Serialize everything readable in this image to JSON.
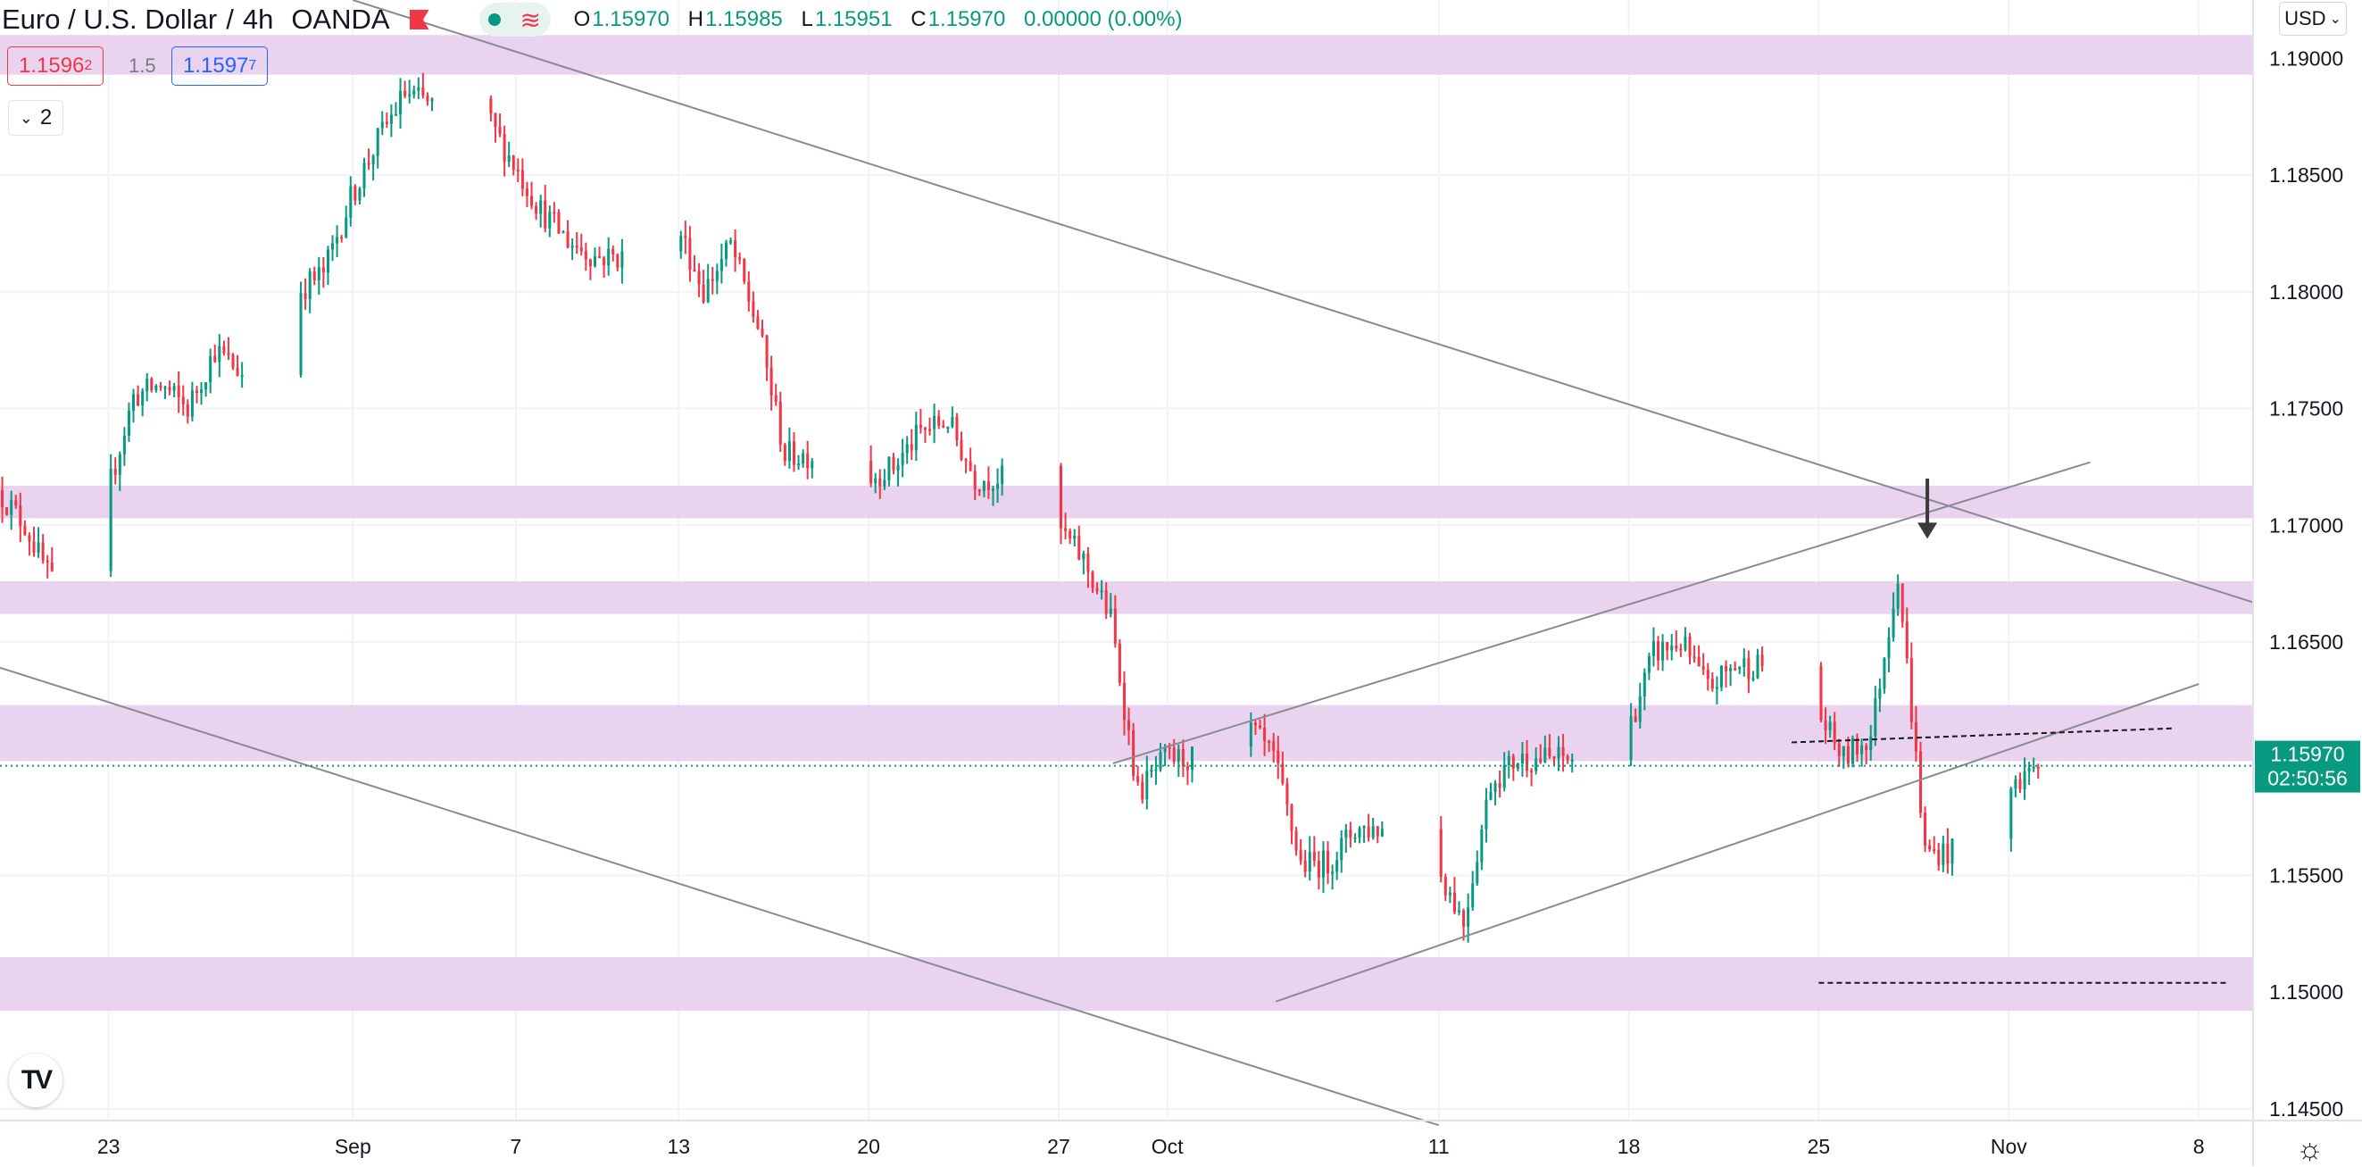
{
  "header": {
    "symbol": "Euro / U.S. Dollar",
    "interval": "4h",
    "broker": "OANDA",
    "ohlc": {
      "o_label": "O",
      "o": "1.15970",
      "h_label": "H",
      "h": "1.15985",
      "l_label": "L",
      "l": "1.15951",
      "c_label": "C",
      "c": "1.15970",
      "change": "0.00000 (0.00%)"
    }
  },
  "quote": {
    "sell_main": "1.1596",
    "sell_sup": "2",
    "spread": "1.5",
    "buy_main": "1.1597",
    "buy_sup": "7"
  },
  "indicator_count": "2",
  "currency": "USD",
  "colors": {
    "up": "#089981",
    "down": "#f23645",
    "zone": "#e5cbec",
    "line": "#8a8a96"
  },
  "chart_data": {
    "type": "candlestick",
    "y_ticks": [
      "1.19000",
      "1.18500",
      "1.18000",
      "1.17500",
      "1.17000",
      "1.16500",
      "1.15500",
      "1.15000",
      "1.14500"
    ],
    "x_ticks": [
      {
        "label": "23",
        "x": "2021-08-23"
      },
      {
        "label": "Sep",
        "x": "2021-09-01"
      },
      {
        "label": "7",
        "x": "2021-09-07"
      },
      {
        "label": "13",
        "x": "2021-09-13"
      },
      {
        "label": "20",
        "x": "2021-09-20"
      },
      {
        "label": "27",
        "x": "2021-09-27"
      },
      {
        "label": "Oct",
        "x": "2021-10-01"
      },
      {
        "label": "11",
        "x": "2021-10-11"
      },
      {
        "label": "18",
        "x": "2021-10-18"
      },
      {
        "label": "25",
        "x": "2021-10-25"
      },
      {
        "label": "Nov",
        "x": "2021-11-01"
      },
      {
        "label": "8",
        "x": "2021-11-08"
      }
    ],
    "x_range": [
      "2021-08-19",
      "2021-11-10"
    ],
    "y_range": [
      1.1445,
      1.1925
    ],
    "last_price": "1.15970",
    "countdown": "02:50:56",
    "price_path": [
      [
        "2021-08-19",
        1.1715
      ],
      [
        "2021-08-20",
        1.17
      ],
      [
        "2021-08-21",
        1.1675
      ],
      [
        "2021-08-22",
        1.1683
      ],
      [
        "2021-08-23",
        1.1712
      ],
      [
        "2021-08-24",
        1.1755
      ],
      [
        "2021-08-25",
        1.176
      ],
      [
        "2021-08-26",
        1.175
      ],
      [
        "2021-08-27",
        1.1775
      ],
      [
        "2021-08-28",
        1.1765
      ],
      [
        "2021-08-29",
        1.177
      ],
      [
        "2021-08-30",
        1.18
      ],
      [
        "2021-08-31",
        1.1808
      ],
      [
        "2021-09-01",
        1.184
      ],
      [
        "2021-09-02",
        1.1865
      ],
      [
        "2021-09-03",
        1.1885
      ],
      [
        "2021-09-04",
        1.188
      ],
      [
        "2021-09-05",
        1.188
      ],
      [
        "2021-09-06",
        1.1875
      ],
      [
        "2021-09-07",
        1.1855
      ],
      [
        "2021-09-08",
        1.1835
      ],
      [
        "2021-09-09",
        1.1822
      ],
      [
        "2021-09-10",
        1.1815
      ],
      [
        "2021-09-11",
        1.1815
      ],
      [
        "2021-09-12",
        1.1815
      ],
      [
        "2021-09-13",
        1.183
      ],
      [
        "2021-09-14",
        1.18
      ],
      [
        "2021-09-15",
        1.182
      ],
      [
        "2021-09-16",
        1.1785
      ],
      [
        "2021-09-17",
        1.173
      ],
      [
        "2021-09-18",
        1.173
      ],
      [
        "2021-09-19",
        1.173
      ],
      [
        "2021-09-20",
        1.172
      ],
      [
        "2021-09-21",
        1.1725
      ],
      [
        "2021-09-22",
        1.174
      ],
      [
        "2021-09-23",
        1.1745
      ],
      [
        "2021-09-24",
        1.172
      ],
      [
        "2021-09-25",
        1.172
      ],
      [
        "2021-09-26",
        1.172
      ],
      [
        "2021-09-27",
        1.17
      ],
      [
        "2021-09-28",
        1.1685
      ],
      [
        "2021-09-29",
        1.166
      ],
      [
        "2021-09-30",
        1.1585
      ],
      [
        "2021-10-01",
        1.16
      ],
      [
        "2021-10-02",
        1.16
      ],
      [
        "2021-10-03",
        1.16
      ],
      [
        "2021-10-04",
        1.1615
      ],
      [
        "2021-10-05",
        1.16
      ],
      [
        "2021-10-06",
        1.1555
      ],
      [
        "2021-10-07",
        1.1555
      ],
      [
        "2021-10-08",
        1.157
      ],
      [
        "2021-10-09",
        1.157
      ],
      [
        "2021-10-10",
        1.157
      ],
      [
        "2021-10-11",
        1.1555
      ],
      [
        "2021-10-12",
        1.153
      ],
      [
        "2021-10-13",
        1.159
      ],
      [
        "2021-10-14",
        1.16
      ],
      [
        "2021-10-15",
        1.16
      ],
      [
        "2021-10-16",
        1.16
      ],
      [
        "2021-10-17",
        1.16
      ],
      [
        "2021-10-18",
        1.161
      ],
      [
        "2021-10-19",
        1.1645
      ],
      [
        "2021-10-20",
        1.165
      ],
      [
        "2021-10-21",
        1.163
      ],
      [
        "2021-10-22",
        1.164
      ],
      [
        "2021-10-23",
        1.164
      ],
      [
        "2021-10-24",
        1.164
      ],
      [
        "2021-10-25",
        1.162
      ],
      [
        "2021-10-26",
        1.16
      ],
      [
        "2021-10-27",
        1.161
      ],
      [
        "2021-10-28",
        1.168
      ],
      [
        "2021-10-29",
        1.156
      ],
      [
        "2021-10-30",
        1.156
      ],
      [
        "2021-10-31",
        1.156
      ],
      [
        "2021-11-01",
        1.1585
      ],
      [
        "2021-11-02",
        1.1597
      ]
    ],
    "zones": [
      {
        "from": 1.1893,
        "to": 1.191
      },
      {
        "from": 1.1703,
        "to": 1.1717
      },
      {
        "from": 1.1662,
        "to": 1.1676
      },
      {
        "from": 1.1599,
        "to": 1.1623
      },
      {
        "from": 1.1492,
        "to": 1.1515
      }
    ],
    "trendlines": [
      {
        "x1": "2021-09-01",
        "y1": 1.1925,
        "x2": "2021-11-10",
        "y2": 1.1667
      },
      {
        "x1": "2021-08-19",
        "y1": 1.1639,
        "x2": "2021-10-11",
        "y2": 1.1443
      },
      {
        "x1": "2021-09-29",
        "y1": 1.1598,
        "x2": "2021-11-04",
        "y2": 1.1727
      },
      {
        "x1": "2021-10-05",
        "y1": 1.1496,
        "x2": "2021-11-08",
        "y2": 1.1632
      }
    ],
    "dashed_lines": [
      {
        "x1": "2021-10-24",
        "y1": 1.1607,
        "x2": "2021-11-07",
        "y2": 1.1613
      },
      {
        "x1": "2021-10-25",
        "y1": 1.1504,
        "x2": "2021-11-09",
        "y2": 1.1504
      }
    ],
    "arrow": {
      "x": "2021-10-29",
      "y_top": 1.172,
      "y_tip": 1.1695
    }
  }
}
